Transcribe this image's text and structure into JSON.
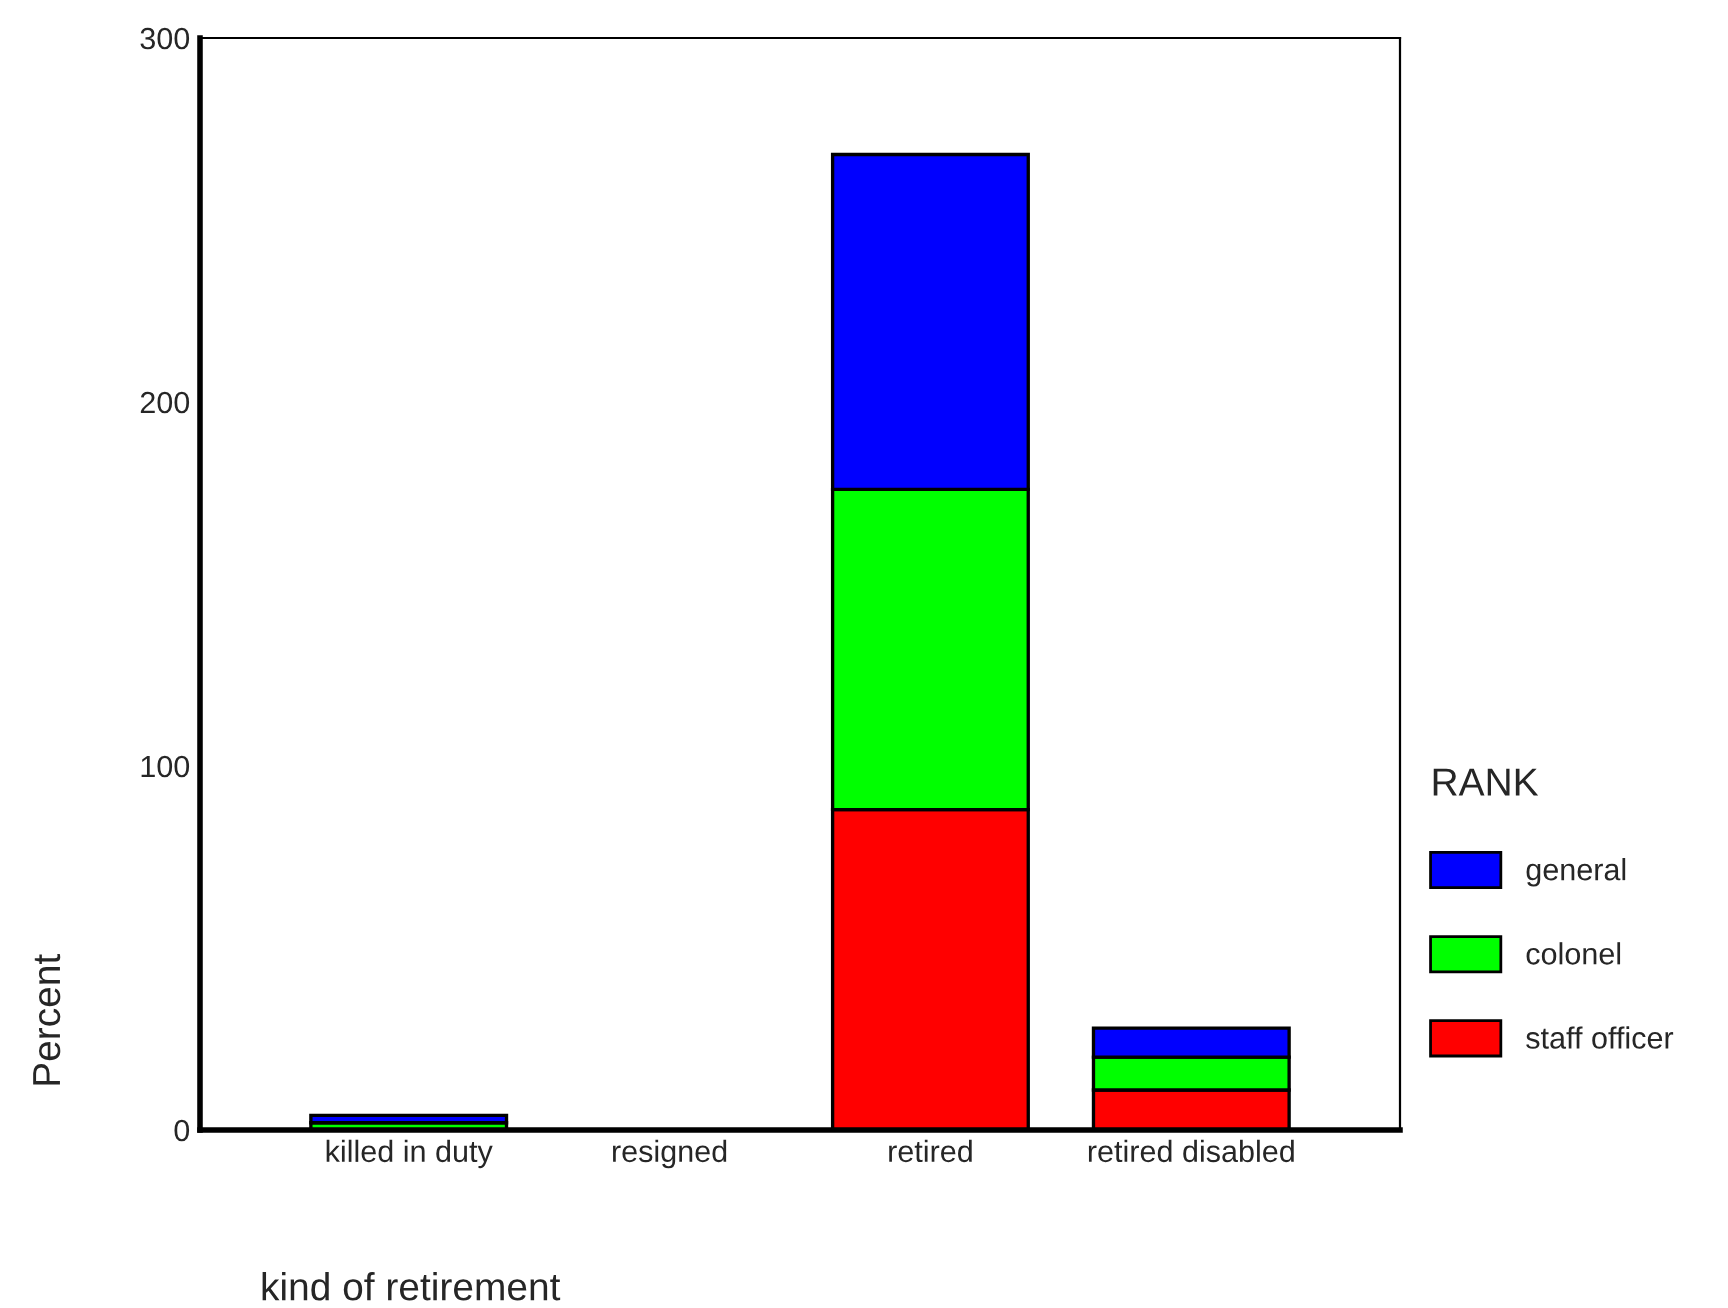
{
  "chart_data": {
    "type": "bar",
    "stacked": true,
    "xlabel": "kind of retirement",
    "ylabel": "Percent",
    "legend_title": "RANK",
    "categories": [
      "killed in duty",
      "resigned",
      "retired",
      "retired disabled"
    ],
    "series": [
      {
        "name": "staff officer",
        "color": "#ff0000",
        "values": [
          null,
          null,
          88,
          11
        ]
      },
      {
        "name": "colonel",
        "color": "#00ff00",
        "values": [
          2,
          null,
          88,
          9
        ]
      },
      {
        "name": "general",
        "color": "#0000ff",
        "values": [
          2,
          null,
          92,
          8
        ]
      }
    ],
    "ylim": [
      0,
      300
    ],
    "yticks": [
      0,
      100,
      200,
      300
    ],
    "grid": false,
    "legend": "right"
  }
}
